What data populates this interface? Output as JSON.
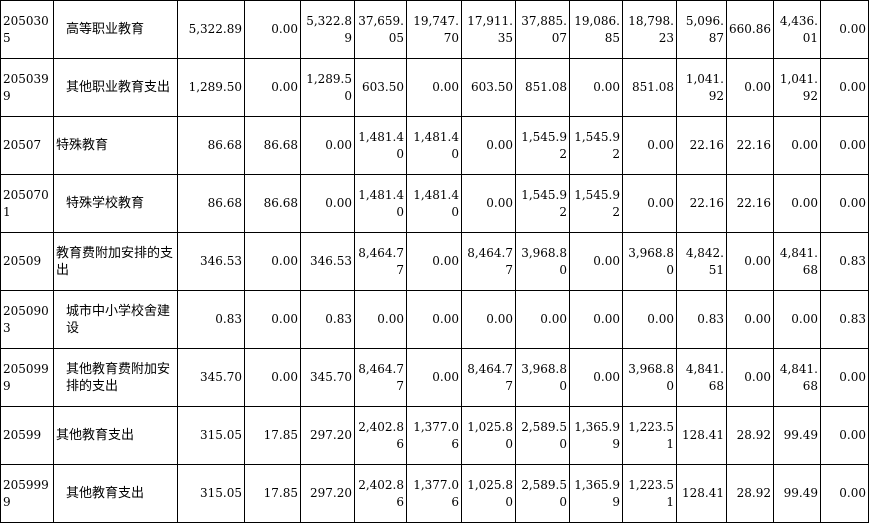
{
  "rows": [
    {
      "code": "2050305",
      "name": "高等职业教育",
      "indent": true,
      "values": [
        "5,322.89",
        "0.00",
        "5,322.89",
        "37,659.05",
        "19,747.70",
        "17,911.35",
        "37,885.07",
        "19,086.85",
        "18,798.23",
        "5,096.87",
        "660.86",
        "4,436.01",
        "0.00"
      ]
    },
    {
      "code": "2050399",
      "name": "其他职业教育支出",
      "indent": true,
      "values": [
        "1,289.50",
        "0.00",
        "1,289.50",
        "603.50",
        "0.00",
        "603.50",
        "851.08",
        "0.00",
        "851.08",
        "1,041.92",
        "0.00",
        "1,041.92",
        "0.00"
      ]
    },
    {
      "code": "20507",
      "name": "特殊教育",
      "indent": false,
      "values": [
        "86.68",
        "86.68",
        "0.00",
        "1,481.40",
        "1,481.40",
        "0.00",
        "1,545.92",
        "1,545.92",
        "0.00",
        "22.16",
        "22.16",
        "0.00",
        "0.00"
      ]
    },
    {
      "code": "2050701",
      "name": "特殊学校教育",
      "indent": true,
      "values": [
        "86.68",
        "86.68",
        "0.00",
        "1,481.40",
        "1,481.40",
        "0.00",
        "1,545.92",
        "1,545.92",
        "0.00",
        "22.16",
        "22.16",
        "0.00",
        "0.00"
      ]
    },
    {
      "code": "20509",
      "name": "教育费附加安排的支出",
      "indent": false,
      "values": [
        "346.53",
        "0.00",
        "346.53",
        "8,464.77",
        "0.00",
        "8,464.77",
        "3,968.80",
        "0.00",
        "3,968.80",
        "4,842.51",
        "0.00",
        "4,841.68",
        "0.83"
      ]
    },
    {
      "code": "2050903",
      "name": "城市中小学校舍建设",
      "indent": true,
      "values": [
        "0.83",
        "0.00",
        "0.83",
        "0.00",
        "0.00",
        "0.00",
        "0.00",
        "0.00",
        "0.00",
        "0.83",
        "0.00",
        "0.00",
        "0.83"
      ]
    },
    {
      "code": "2050999",
      "name": "其他教育费附加安排的支出",
      "indent": true,
      "values": [
        "345.70",
        "0.00",
        "345.70",
        "8,464.77",
        "0.00",
        "8,464.77",
        "3,968.80",
        "0.00",
        "3,968.80",
        "4,841.68",
        "0.00",
        "4,841.68",
        "0.00"
      ]
    },
    {
      "code": "20599",
      "name": "其他教育支出",
      "indent": false,
      "values": [
        "315.05",
        "17.85",
        "297.20",
        "2,402.86",
        "1,377.06",
        "1,025.80",
        "2,589.50",
        "1,365.99",
        "1,223.51",
        "128.41",
        "28.92",
        "99.49",
        "0.00"
      ]
    },
    {
      "code": "2059999",
      "name": "其他教育支出",
      "indent": true,
      "values": [
        "315.05",
        "17.85",
        "297.20",
        "2,402.86",
        "1,377.06",
        "1,025.80",
        "2,589.50",
        "1,365.99",
        "1,223.51",
        "128.41",
        "28.92",
        "99.49",
        "0.00"
      ]
    }
  ]
}
